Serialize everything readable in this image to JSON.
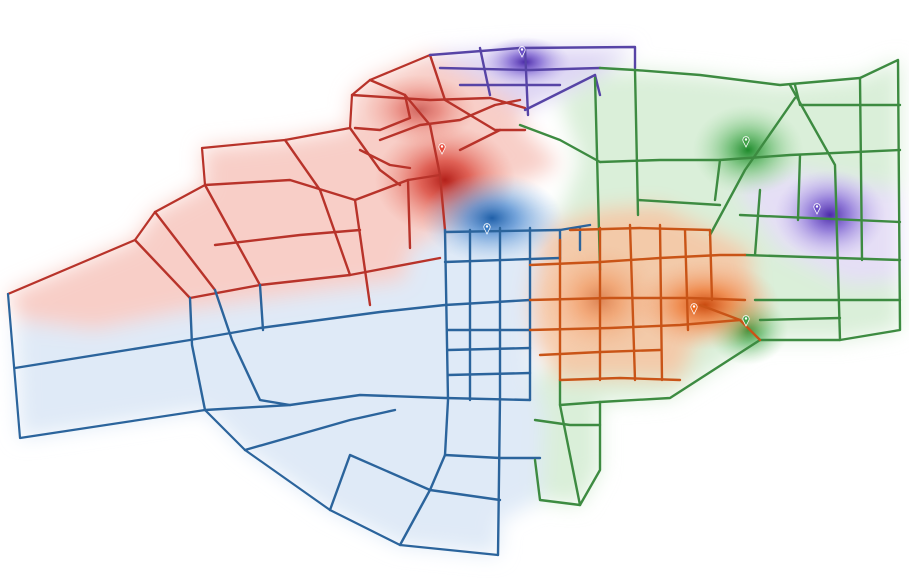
{
  "map": {
    "type": "district-partition-heatmap",
    "districts": [
      {
        "name": "red",
        "color": "#c0392b",
        "fill": "#e74c3c"
      },
      {
        "name": "blue",
        "color": "#2c6aa0",
        "fill": "#3a7cc4"
      },
      {
        "name": "purple",
        "color": "#5b4aa8",
        "fill": "#6a4fc6"
      },
      {
        "name": "green",
        "color": "#3a8a3e",
        "fill": "#3fa046"
      },
      {
        "name": "orange",
        "color": "#d0561a",
        "fill": "#ee6a1e"
      }
    ],
    "markers": [
      {
        "district": "purple",
        "icon": "pin-icon"
      },
      {
        "district": "red",
        "icon": "pin-icon"
      },
      {
        "district": "blue",
        "icon": "pin-icon"
      },
      {
        "district": "green",
        "icon": "pin-icon"
      },
      {
        "district": "purple",
        "icon": "pin-icon"
      },
      {
        "district": "orange",
        "icon": "pin-icon"
      },
      {
        "district": "green",
        "icon": "pin-icon"
      }
    ]
  }
}
